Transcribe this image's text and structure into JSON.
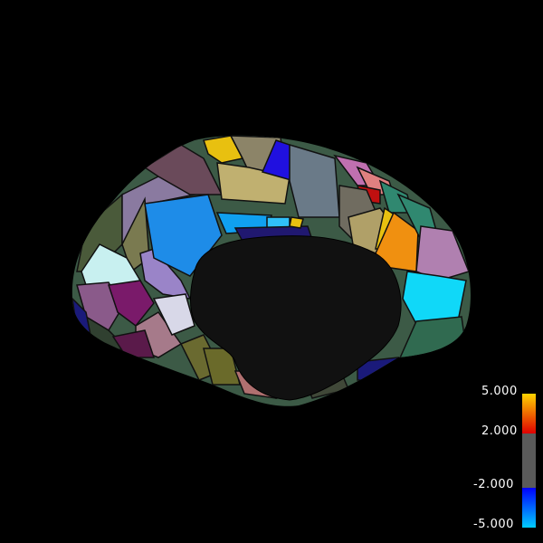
{
  "colorbar": {
    "labels": {
      "max": "5.000",
      "upper_threshold": "2.000",
      "lower_threshold": "-2.000",
      "min": "-5.000"
    },
    "colors": {
      "positive_top": "#ffd400",
      "positive_bottom": "#e00000",
      "neutral": "#5a5a5a",
      "negative_top": "#0000ff",
      "negative_bottom": "#00ccff"
    }
  }
}
